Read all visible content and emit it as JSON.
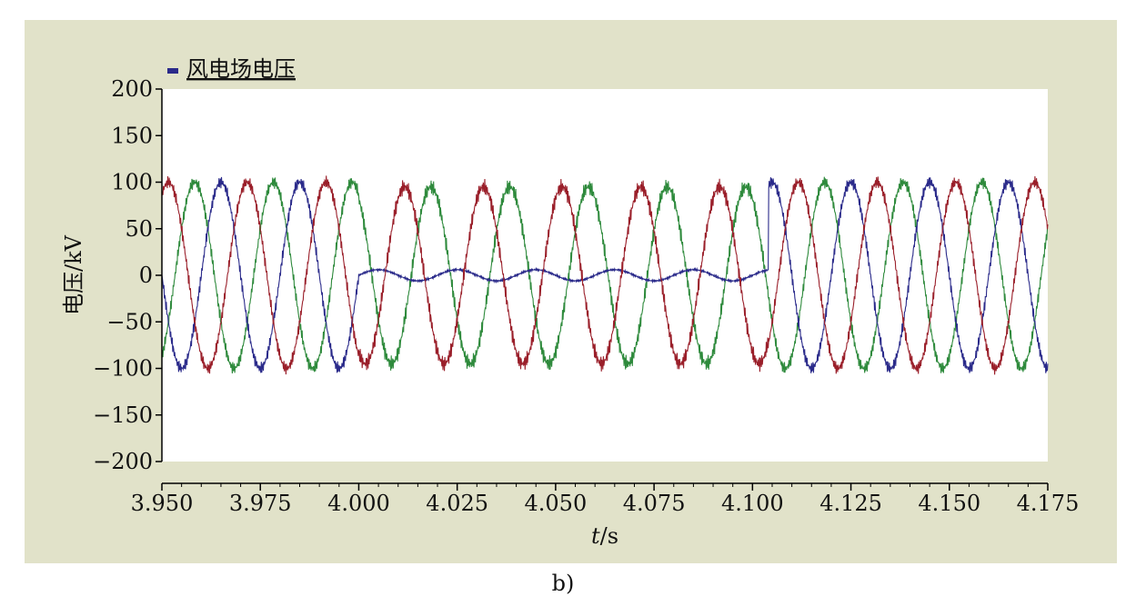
{
  "chart_data": {
    "type": "line",
    "legend": {
      "label": "风电场电压",
      "placement": "top-left"
    },
    "xlabel_var": "t",
    "xlabel_unit": "/s",
    "ylabel": "电压/kV",
    "xlim": [
      3.95,
      4.175
    ],
    "ylim": [
      -200,
      200
    ],
    "x_ticks": [
      "3.950",
      "3.975",
      "4.000",
      "4.025",
      "4.050",
      "4.075",
      "4.100",
      "4.125",
      "4.150",
      "4.175"
    ],
    "y_ticks": [
      "200",
      "150",
      "100",
      "50",
      "0",
      "−50",
      "−100",
      "−150",
      "−200"
    ],
    "grid": false,
    "signal": {
      "frequency_hz": 50,
      "amplitude_kv": 100,
      "fault_start_s": 4.0,
      "fault_end_s": 4.104,
      "fault_residual_amplitude_kv": 6,
      "fault_amplitude_remaining_phases_kv": 95
    },
    "series": [
      {
        "phase_deg": 0,
        "faulted": true,
        "color": "#2a2a8a"
      },
      {
        "phase_deg": -120,
        "faulted": false,
        "color": "#9a1f2a"
      },
      {
        "phase_deg": 120,
        "faulted": false,
        "color": "#2e8a3c"
      }
    ]
  },
  "caption": "b)"
}
